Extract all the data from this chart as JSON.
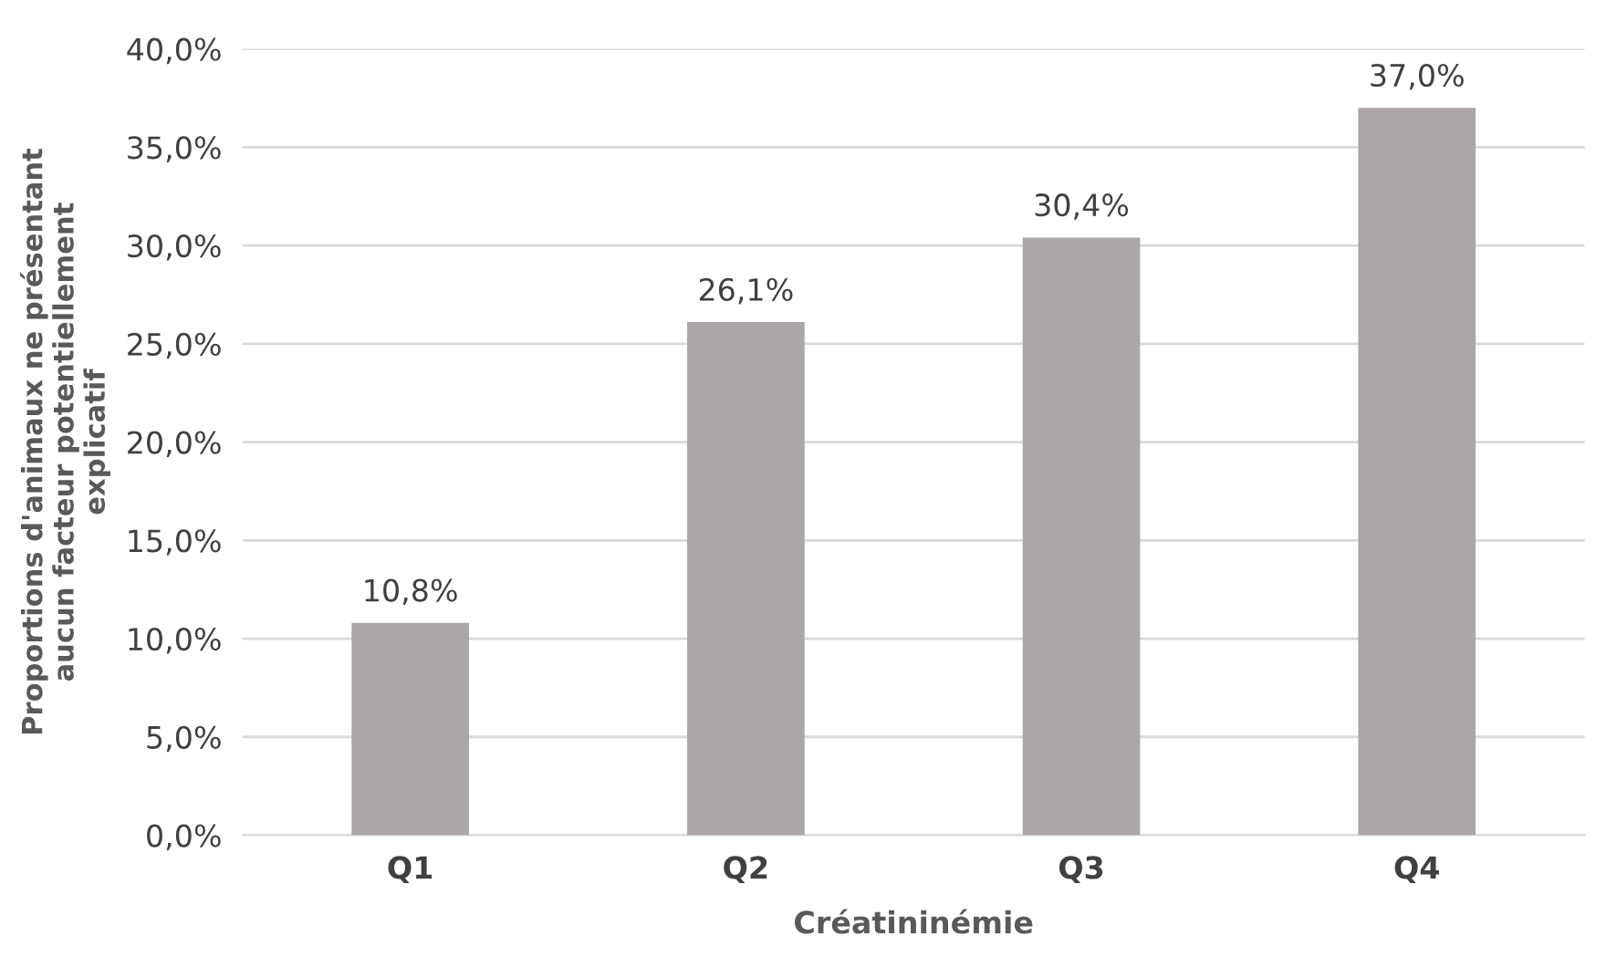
{
  "chart_data": {
    "type": "bar",
    "xlabel": "Créatininémie",
    "ylabel": "Proportions d'animaux ne présentant\naucun facteur potentiellement\nexplicatif",
    "categories": [
      "Q1",
      "Q2",
      "Q3",
      "Q4"
    ],
    "values": [
      10.8,
      26.1,
      30.4,
      37.0
    ],
    "value_labels": [
      "10,8%",
      "26,1%",
      "30,4%",
      "37,0%"
    ],
    "color": "#aca7a6",
    "ylim": [
      0,
      40
    ],
    "yticks": [
      {
        "value": 0,
        "label": "0,0%"
      },
      {
        "value": 5,
        "label": "5,0%"
      },
      {
        "value": 10,
        "label": "10,0%"
      },
      {
        "value": 15,
        "label": "15,0%"
      },
      {
        "value": 20,
        "label": "20,0%"
      },
      {
        "value": 25,
        "label": "25,0%"
      },
      {
        "value": 30,
        "label": "30,0%"
      },
      {
        "value": 35,
        "label": "35,0%"
      },
      {
        "value": 40,
        "label": "40,0%"
      }
    ],
    "grid": "y"
  }
}
